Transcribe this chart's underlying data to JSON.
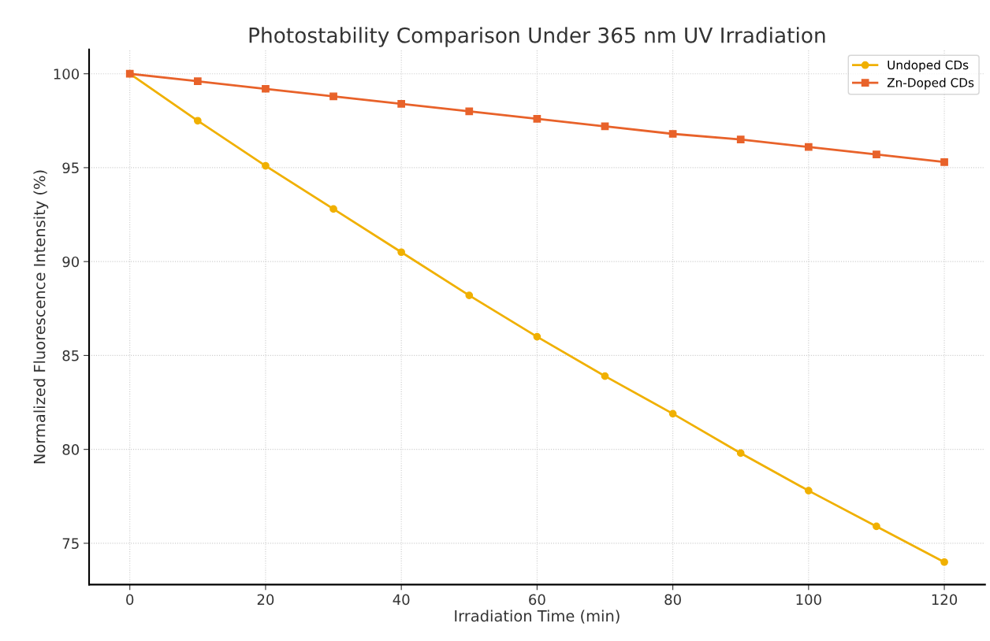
{
  "chart_data": {
    "type": "line",
    "title": "Photostability Comparison Under 365 nm UV Irradiation",
    "xlabel": "Irradiation Time (min)",
    "ylabel": "Normalized Fluorescence Intensity (%)",
    "x": [
      0,
      10,
      20,
      30,
      40,
      50,
      60,
      70,
      80,
      90,
      100,
      110,
      120
    ],
    "series": [
      {
        "name": "Undoped CDs",
        "color": "#f0b000",
        "marker": "circle",
        "values": [
          100,
          97.5,
          95.1,
          92.8,
          90.5,
          88.2,
          86.0,
          83.9,
          81.9,
          79.8,
          77.8,
          75.9,
          74.0
        ]
      },
      {
        "name": "Zn-Doped CDs",
        "color": "#e8622a",
        "marker": "square",
        "values": [
          100,
          99.6,
          99.2,
          98.8,
          98.4,
          98.0,
          97.6,
          97.2,
          96.8,
          96.5,
          96.1,
          95.7,
          95.3
        ]
      }
    ],
    "xlim": [
      -6,
      126
    ],
    "ylim": [
      72.8,
      101.3
    ],
    "xticks": [
      0,
      20,
      40,
      60,
      80,
      100,
      120
    ],
    "yticks": [
      75,
      80,
      85,
      90,
      95,
      100
    ],
    "grid": true,
    "legend": "top right",
    "line_style": "solid"
  }
}
